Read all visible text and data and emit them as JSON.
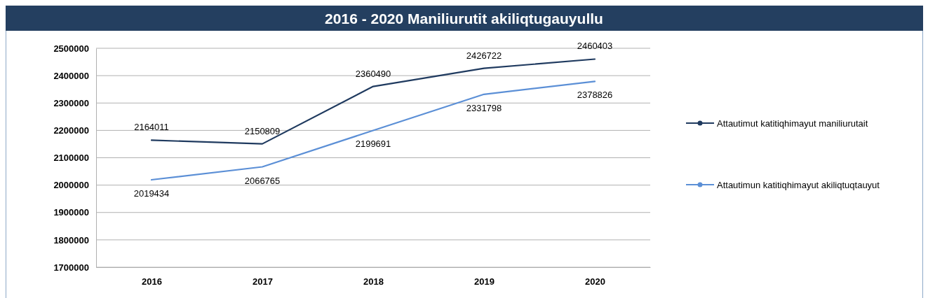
{
  "chart_data": {
    "type": "line",
    "title": "2016 - 2020 Maniliurutit akiliqtugauyullu",
    "categories": [
      "2016",
      "2017",
      "2018",
      "2019",
      "2020"
    ],
    "series": [
      {
        "name": "Attautimut katitiqhimayut maniliurutait",
        "color": "#1f3a5f",
        "values": [
          2164011,
          2150809,
          2360490,
          2426722,
          2460403
        ]
      },
      {
        "name": "Attautimun katitiqhimayut akiliqtuqtauyut",
        "color": "#5b8fd6",
        "values": [
          2019434,
          2066765,
          2199691,
          2331798,
          2378826
        ]
      }
    ],
    "ylim": [
      1700000,
      2500000
    ],
    "yticks": [
      1700000,
      1800000,
      1900000,
      2000000,
      2100000,
      2200000,
      2300000,
      2400000,
      2500000
    ],
    "grid": "y",
    "legend": "right",
    "data_labels": true,
    "marker": "none",
    "line_style": "solid"
  }
}
